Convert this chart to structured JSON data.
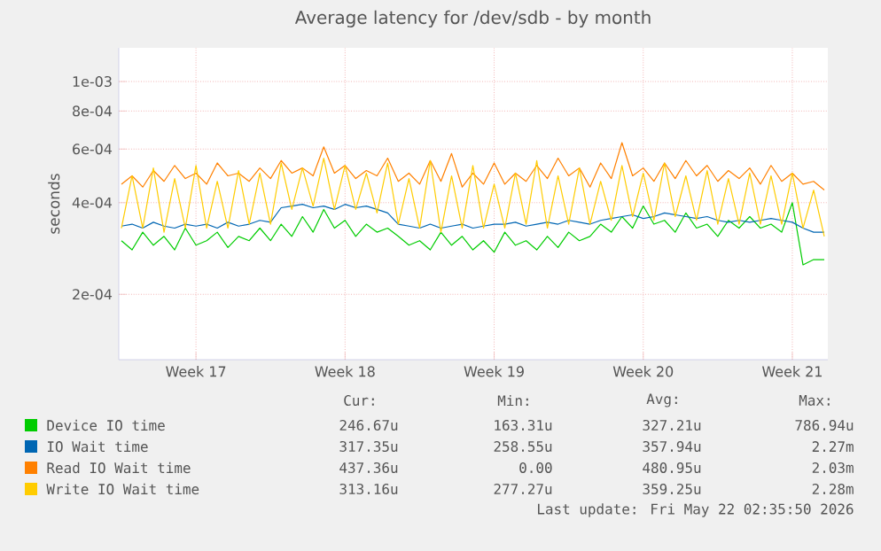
{
  "chart_data": {
    "type": "line",
    "title": "Average latency for /dev/sdb - by month",
    "ylabel": "seconds",
    "x": [
      "2026-04-20T00:00",
      "2026-04-20T12:00",
      "2026-04-21T00:00",
      "2026-04-21T12:00",
      "2026-04-22T00:00",
      "2026-04-22T12:00",
      "2026-04-23T00:00",
      "2026-04-23T12:00",
      "2026-04-24T00:00",
      "2026-04-24T12:00",
      "2026-04-25T00:00",
      "2026-04-25T12:00",
      "2026-04-26T00:00",
      "2026-04-26T12:00",
      "2026-04-27T00:00",
      "2026-04-27T12:00",
      "2026-04-28T00:00",
      "2026-04-28T12:00",
      "2026-04-29T00:00",
      "2026-04-29T12:00",
      "2026-04-30T00:00",
      "2026-04-30T12:00",
      "2026-05-01T00:00",
      "2026-05-01T12:00",
      "2026-05-02T00:00",
      "2026-05-02T12:00",
      "2026-05-03T00:00",
      "2026-05-03T12:00",
      "2026-05-04T00:00",
      "2026-05-04T12:00",
      "2026-05-05T00:00",
      "2026-05-05T12:00",
      "2026-05-06T00:00",
      "2026-05-06T12:00",
      "2026-05-07T00:00",
      "2026-05-07T12:00",
      "2026-05-08T00:00",
      "2026-05-08T12:00",
      "2026-05-09T00:00",
      "2026-05-09T12:00",
      "2026-05-10T00:00",
      "2026-05-10T12:00",
      "2026-05-11T00:00",
      "2026-05-11T12:00",
      "2026-05-12T00:00",
      "2026-05-12T12:00",
      "2026-05-13T00:00",
      "2026-05-13T12:00",
      "2026-05-14T00:00",
      "2026-05-14T12:00",
      "2026-05-15T00:00",
      "2026-05-15T12:00",
      "2026-05-16T00:00",
      "2026-05-16T12:00",
      "2026-05-17T00:00",
      "2026-05-17T12:00",
      "2026-05-18T00:00",
      "2026-05-18T12:00",
      "2026-05-19T00:00",
      "2026-05-19T12:00",
      "2026-05-20T00:00",
      "2026-05-20T12:00",
      "2026-05-21T00:00",
      "2026-05-21T12:00",
      "2026-05-22T00:00",
      "2026-05-22T12:00",
      "2026-05-23T00:00"
    ],
    "series": [
      {
        "name": "Device IO time",
        "color": "#00cc00",
        "values": [
          0.0003,
          0.00028,
          0.00032,
          0.00029,
          0.00031,
          0.00028,
          0.00033,
          0.00029,
          0.0003,
          0.00032,
          0.000285,
          0.00031,
          0.0003,
          0.00033,
          0.0003,
          0.00034,
          0.00031,
          0.00036,
          0.00032,
          0.00038,
          0.00033,
          0.00035,
          0.00031,
          0.00034,
          0.00032,
          0.00033,
          0.00031,
          0.00029,
          0.0003,
          0.00028,
          0.00032,
          0.00029,
          0.00031,
          0.00028,
          0.0003,
          0.000275,
          0.00032,
          0.00029,
          0.0003,
          0.00028,
          0.00031,
          0.000285,
          0.00032,
          0.0003,
          0.00031,
          0.00034,
          0.00032,
          0.00036,
          0.00033,
          0.00039,
          0.00034,
          0.00035,
          0.00032,
          0.00037,
          0.00033,
          0.00034,
          0.00031,
          0.00035,
          0.00033,
          0.00036,
          0.00033,
          0.00034,
          0.00032,
          0.0004,
          0.00025,
          0.00026,
          0.00026
        ]
      },
      {
        "name": "IO Wait time",
        "color": "#0066b3",
        "values": [
          0.000335,
          0.00034,
          0.00033,
          0.000345,
          0.000335,
          0.00033,
          0.00034,
          0.000335,
          0.00034,
          0.00033,
          0.000345,
          0.000335,
          0.00034,
          0.00035,
          0.000345,
          0.000385,
          0.00039,
          0.000395,
          0.000385,
          0.00039,
          0.00038,
          0.000395,
          0.000385,
          0.00039,
          0.00038,
          0.00037,
          0.00034,
          0.000335,
          0.00033,
          0.00034,
          0.00033,
          0.000335,
          0.00034,
          0.00033,
          0.000335,
          0.00034,
          0.00034,
          0.000345,
          0.000335,
          0.00034,
          0.000345,
          0.00034,
          0.00035,
          0.000345,
          0.00034,
          0.00035,
          0.000355,
          0.00036,
          0.000365,
          0.000355,
          0.00036,
          0.00037,
          0.000365,
          0.00036,
          0.000355,
          0.00036,
          0.00035,
          0.000345,
          0.00035,
          0.000345,
          0.00035,
          0.000355,
          0.00035,
          0.000345,
          0.00033,
          0.00032,
          0.00032
        ]
      },
      {
        "name": "Read IO Wait time",
        "color": "#ff8000",
        "values": [
          0.00046,
          0.00049,
          0.00045,
          0.00051,
          0.00047,
          0.00053,
          0.00048,
          0.0005,
          0.00046,
          0.00054,
          0.00049,
          0.0005,
          0.00047,
          0.00052,
          0.00048,
          0.00055,
          0.0005,
          0.00052,
          0.00049,
          0.00061,
          0.0005,
          0.00053,
          0.00048,
          0.00051,
          0.00049,
          0.00056,
          0.00047,
          0.0005,
          0.00046,
          0.00055,
          0.00047,
          0.00058,
          0.00045,
          0.0005,
          0.00046,
          0.00054,
          0.00046,
          0.0005,
          0.00047,
          0.00053,
          0.00048,
          0.00056,
          0.00049,
          0.00052,
          0.00045,
          0.00054,
          0.00048,
          0.00063,
          0.00049,
          0.00052,
          0.00047,
          0.00054,
          0.00048,
          0.00055,
          0.00049,
          0.00053,
          0.00047,
          0.00051,
          0.00048,
          0.00052,
          0.00046,
          0.00053,
          0.00047,
          0.0005,
          0.00046,
          0.00047,
          0.00044
        ]
      },
      {
        "name": "Write IO Wait time",
        "color": "#ffcc00",
        "values": [
          0.00033,
          0.00049,
          0.00033,
          0.00052,
          0.00032,
          0.00048,
          0.00033,
          0.00053,
          0.00033,
          0.00047,
          0.00033,
          0.00051,
          0.00034,
          0.0005,
          0.00034,
          0.00054,
          0.00038,
          0.00052,
          0.00039,
          0.00056,
          0.00038,
          0.00053,
          0.00038,
          0.0005,
          0.00037,
          0.00054,
          0.00034,
          0.00048,
          0.00033,
          0.00055,
          0.00032,
          0.00049,
          0.00033,
          0.00053,
          0.00033,
          0.00046,
          0.00033,
          0.0005,
          0.00034,
          0.00055,
          0.00033,
          0.00049,
          0.00034,
          0.00052,
          0.00034,
          0.00047,
          0.00035,
          0.00053,
          0.00036,
          0.0005,
          0.00035,
          0.00054,
          0.00036,
          0.00049,
          0.00035,
          0.00051,
          0.00034,
          0.00048,
          0.00034,
          0.0005,
          0.00034,
          0.00049,
          0.00034,
          0.0005,
          0.00033,
          0.00044,
          0.00031
        ]
      }
    ],
    "xlim": [
      "2026-04-19T21:00",
      "2026-05-23T04:00"
    ],
    "xticks": [
      {
        "value": "2026-04-23T12:00",
        "label": "Week 17"
      },
      {
        "value": "2026-04-30T12:00",
        "label": "Week 18"
      },
      {
        "value": "2026-05-07T12:00",
        "label": "Week 19"
      },
      {
        "value": "2026-05-14T12:00",
        "label": "Week 20"
      },
      {
        "value": "2026-05-21T12:00",
        "label": "Week 21"
      }
    ],
    "ylim": [
      0.000122,
      0.00129
    ],
    "yticks": [
      {
        "value": 0.0002,
        "label": "2e-04"
      },
      {
        "value": 0.0004,
        "label": "4e-04"
      },
      {
        "value": 0.0006,
        "label": "6e-04"
      },
      {
        "value": 0.0008,
        "label": "8e-04"
      },
      {
        "value": 0.001,
        "label": "1e-03"
      }
    ],
    "log": true,
    "grid": true,
    "legend": "bottom",
    "marker": "none",
    "line_style": "solid",
    "annotations": [
      "Cur:",
      "Min:",
      "Avg:",
      "Max:",
      "246.67u",
      "163.31u",
      "327.21u",
      "786.94u",
      "317.35u",
      "258.55u",
      "357.94u",
      "2.27m",
      "437.36u",
      "0.00",
      "480.95u",
      "2.03m",
      "313.16u",
      "277.27u",
      "359.25u",
      "2.28m",
      "Last update: Fri May 22 02:35:50 2026"
    ]
  }
}
